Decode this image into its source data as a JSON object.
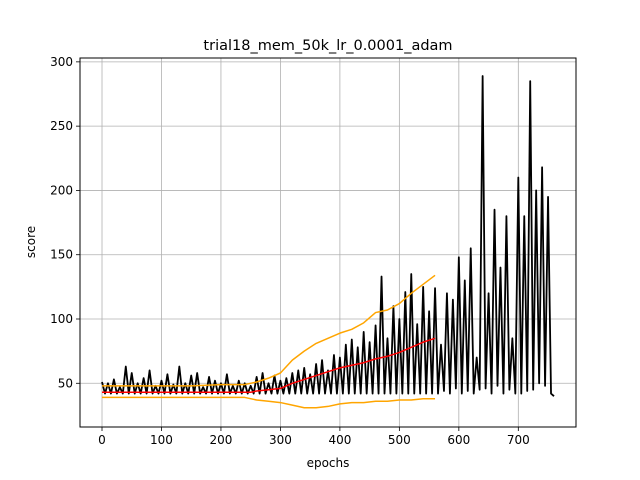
{
  "chart_data": {
    "type": "line",
    "title": "trial18_mem_50k_lr_0.0001_adam",
    "xlabel": "epochs",
    "ylabel": "score",
    "xlim": [
      -37,
      797
    ],
    "ylim": [
      16,
      303
    ],
    "xticks": [
      0,
      100,
      200,
      300,
      400,
      500,
      600,
      700
    ],
    "yticks": [
      50,
      100,
      150,
      200,
      250,
      300
    ],
    "grid": true,
    "legend": "none",
    "colors": {
      "score": "#000000",
      "mean": "#ff0000",
      "band": "#ffa500"
    },
    "series": [
      {
        "role": "score",
        "color": "#000000",
        "x": [
          0,
          5,
          10,
          15,
          20,
          25,
          30,
          35,
          40,
          45,
          50,
          55,
          60,
          65,
          70,
          75,
          80,
          85,
          90,
          95,
          100,
          105,
          110,
          115,
          120,
          125,
          130,
          135,
          140,
          145,
          150,
          155,
          160,
          165,
          170,
          175,
          180,
          185,
          190,
          195,
          200,
          205,
          210,
          215,
          220,
          225,
          230,
          235,
          240,
          245,
          250,
          255,
          260,
          265,
          270,
          275,
          280,
          285,
          290,
          295,
          300,
          305,
          310,
          315,
          320,
          325,
          330,
          335,
          340,
          345,
          350,
          355,
          360,
          365,
          370,
          375,
          380,
          385,
          390,
          395,
          400,
          405,
          410,
          415,
          420,
          425,
          430,
          435,
          440,
          445,
          450,
          455,
          460,
          465,
          470,
          475,
          480,
          485,
          490,
          495,
          500,
          505,
          510,
          515,
          520,
          525,
          530,
          535,
          540,
          545,
          550,
          555,
          560,
          565,
          570,
          575,
          580,
          585,
          590,
          595,
          600,
          605,
          610,
          615,
          620,
          625,
          630,
          635,
          640,
          645,
          650,
          655,
          660,
          665,
          670,
          675,
          680,
          685,
          690,
          695,
          700,
          705,
          710,
          715,
          720,
          725,
          730,
          735,
          740,
          745,
          750,
          755,
          760
        ],
        "y": [
          51,
          42,
          50,
          42,
          53,
          42,
          47,
          42,
          63,
          42,
          58,
          42,
          50,
          42,
          54,
          42,
          60,
          42,
          48,
          42,
          52,
          42,
          57,
          42,
          49,
          42,
          63,
          42,
          50,
          42,
          56,
          42,
          58,
          42,
          47,
          42,
          55,
          42,
          52,
          42,
          50,
          42,
          57,
          42,
          48,
          42,
          52,
          42,
          50,
          42,
          48,
          42,
          55,
          42,
          58,
          42,
          50,
          42,
          56,
          42,
          52,
          42,
          54,
          42,
          58,
          42,
          60,
          42,
          62,
          42,
          57,
          42,
          65,
          42,
          68,
          42,
          60,
          42,
          72,
          42,
          70,
          42,
          80,
          42,
          84,
          42,
          78,
          42,
          90,
          42,
          82,
          42,
          95,
          42,
          133,
          42,
          85,
          42,
          110,
          42,
          100,
          42,
          121,
          42,
          135,
          42,
          96,
          42,
          125,
          42,
          106,
          42,
          124,
          42,
          80,
          44,
          120,
          42,
          115,
          46,
          148,
          42,
          130,
          44,
          155,
          42,
          70,
          45,
          289,
          46,
          120,
          42,
          185,
          48,
          140,
          42,
          180,
          45,
          85,
          42,
          210,
          42,
          180,
          44,
          285,
          45,
          200,
          50,
          218,
          48,
          195,
          42,
          40
        ]
      },
      {
        "role": "mean",
        "color": "#ff0000",
        "x": [
          0,
          50,
          100,
          150,
          200,
          250,
          260,
          280,
          300,
          320,
          340,
          360,
          380,
          400,
          420,
          440,
          460,
          480,
          500,
          520,
          540,
          560
        ],
        "y": [
          43,
          43,
          43,
          43,
          43,
          43,
          44,
          45,
          46,
          50,
          53,
          56,
          59,
          62,
          64,
          66,
          69,
          71,
          74,
          78,
          82,
          85
        ]
      },
      {
        "role": "upper",
        "color": "#ffa500",
        "x": [
          0,
          50,
          100,
          150,
          200,
          240,
          260,
          280,
          300,
          320,
          340,
          360,
          380,
          400,
          420,
          440,
          460,
          480,
          500,
          520,
          540,
          560
        ],
        "y": [
          48,
          48,
          48,
          48,
          49,
          49,
          51,
          54,
          58,
          68,
          75,
          81,
          85,
          89,
          92,
          97,
          105,
          107,
          112,
          120,
          127,
          134
        ]
      },
      {
        "role": "lower",
        "color": "#ffa500",
        "x": [
          0,
          50,
          100,
          150,
          200,
          240,
          260,
          280,
          300,
          320,
          340,
          360,
          380,
          400,
          420,
          440,
          460,
          480,
          500,
          520,
          540,
          560
        ],
        "y": [
          39,
          39,
          39,
          39,
          39,
          39,
          37,
          36,
          35,
          33,
          31,
          31,
          32,
          34,
          35,
          35,
          36,
          36,
          37,
          37,
          38,
          38
        ]
      }
    ]
  }
}
